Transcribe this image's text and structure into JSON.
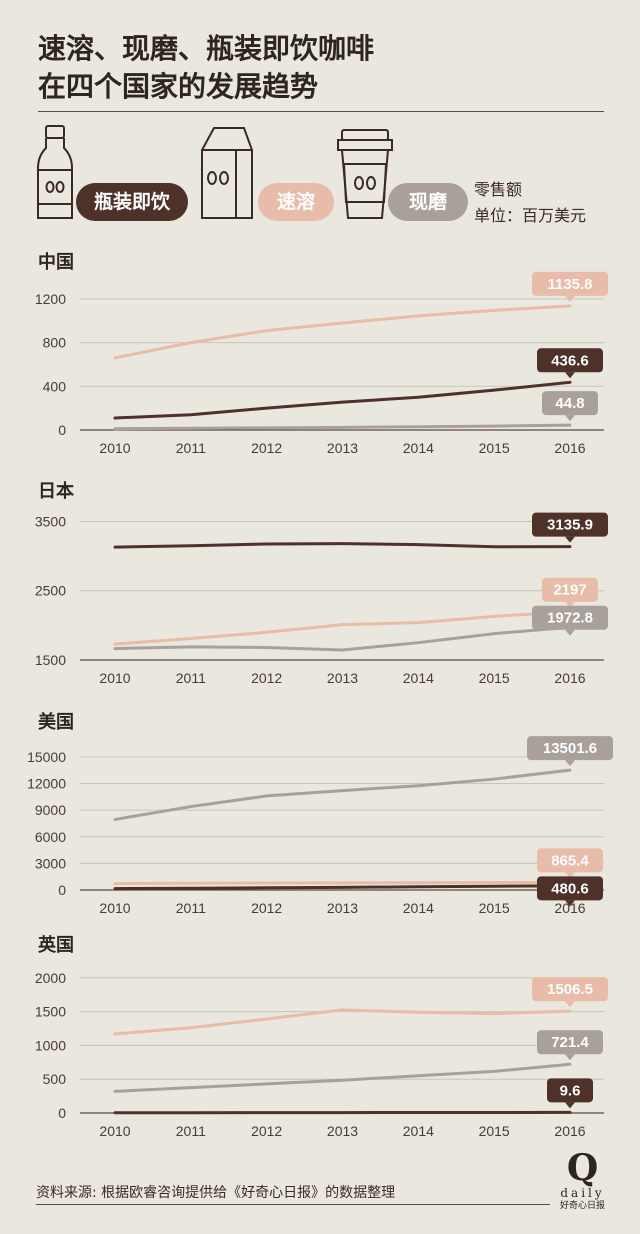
{
  "title": {
    "line1": "速溶、现磨、瓶装即饮咖啡",
    "line2": "在四个国家的发展趋势"
  },
  "legend": {
    "bottled": "瓶装即饮",
    "instant": "速溶",
    "fresh": "现磨",
    "unit_line1": "零售额",
    "unit_line2": "单位：百万美元"
  },
  "colors": {
    "bottled": "#4e3129",
    "instant": "#e8bca9",
    "fresh": "#a9a09a",
    "axis": "#5a4a44",
    "grid": "#c9c4ba"
  },
  "icons": [
    "bottle-icon",
    "coffee-bag-icon",
    "coffee-cup-icon"
  ],
  "source": "资料来源: 根据欧睿咨询提供给《好奇心日报》的数据整理",
  "logo": {
    "mark": "Q",
    "word": "daily",
    "cn": "好奇心日报"
  },
  "chart_data": [
    {
      "type": "line",
      "title": "中国",
      "x": [
        "2010",
        "2011",
        "2012",
        "2013",
        "2014",
        "2015",
        "2016"
      ],
      "yticks": [
        0,
        400,
        800,
        1200
      ],
      "ylim": [
        0,
        1300
      ],
      "series": [
        {
          "name": "速溶",
          "key": "instant",
          "values": [
            660,
            800,
            910,
            980,
            1045,
            1095,
            1135.8
          ],
          "label": "1135.8"
        },
        {
          "name": "瓶装即饮",
          "key": "bottled",
          "values": [
            110,
            140,
            200,
            255,
            300,
            365,
            436.6
          ],
          "label": "436.6"
        },
        {
          "name": "现磨",
          "key": "fresh",
          "values": [
            12,
            16,
            20,
            24,
            30,
            36,
            44.8
          ],
          "label": "44.8"
        }
      ]
    },
    {
      "type": "line",
      "title": "日本",
      "x": [
        "2010",
        "2011",
        "2012",
        "2013",
        "2014",
        "2015",
        "2016"
      ],
      "yticks": [
        1500,
        2500,
        3500
      ],
      "ylim": [
        1500,
        3550
      ],
      "series": [
        {
          "name": "瓶装即饮",
          "key": "bottled",
          "values": [
            3130,
            3150,
            3175,
            3180,
            3165,
            3135,
            3135.9
          ],
          "label": "3135.9"
        },
        {
          "name": "速溶",
          "key": "instant",
          "values": [
            1730,
            1810,
            1900,
            2010,
            2040,
            2130,
            2197
          ],
          "label": "2197"
        },
        {
          "name": "现磨",
          "key": "fresh",
          "values": [
            1665,
            1690,
            1680,
            1645,
            1750,
            1880,
            1972.8
          ],
          "label": "1972.8"
        }
      ]
    },
    {
      "type": "line",
      "title": "美国",
      "x": [
        "2010",
        "2011",
        "2012",
        "2013",
        "2014",
        "2015",
        "2016"
      ],
      "yticks": [
        0,
        3000,
        6000,
        9000,
        12000,
        15000
      ],
      "ylim": [
        0,
        16000
      ],
      "series": [
        {
          "name": "现磨",
          "key": "fresh",
          "values": [
            7950,
            9400,
            10600,
            11200,
            11750,
            12500,
            13501.6
          ],
          "label": "13501.6"
        },
        {
          "name": "速溶",
          "key": "instant",
          "values": [
            720,
            760,
            790,
            800,
            820,
            840,
            865.4
          ],
          "label": "865.4"
        },
        {
          "name": "瓶装即饮",
          "key": "bottled",
          "values": [
            160,
            200,
            250,
            300,
            360,
            420,
            480.6
          ],
          "label": "480.6"
        }
      ]
    },
    {
      "type": "line",
      "title": "英国",
      "x": [
        "2010",
        "2011",
        "2012",
        "2013",
        "2014",
        "2015",
        "2016"
      ],
      "yticks": [
        0,
        500,
        1000,
        1500,
        2000
      ],
      "ylim": [
        0,
        2100
      ],
      "series": [
        {
          "name": "速溶",
          "key": "instant",
          "values": [
            1170,
            1260,
            1390,
            1525,
            1490,
            1470,
            1506.5
          ],
          "label": "1506.5"
        },
        {
          "name": "现磨",
          "key": "fresh",
          "values": [
            320,
            375,
            430,
            485,
            550,
            615,
            721.4
          ],
          "label": "721.4"
        },
        {
          "name": "瓶装即饮",
          "key": "bottled",
          "values": [
            3,
            4,
            5,
            6,
            7,
            8,
            9.6
          ],
          "label": "9.6"
        }
      ]
    }
  ]
}
